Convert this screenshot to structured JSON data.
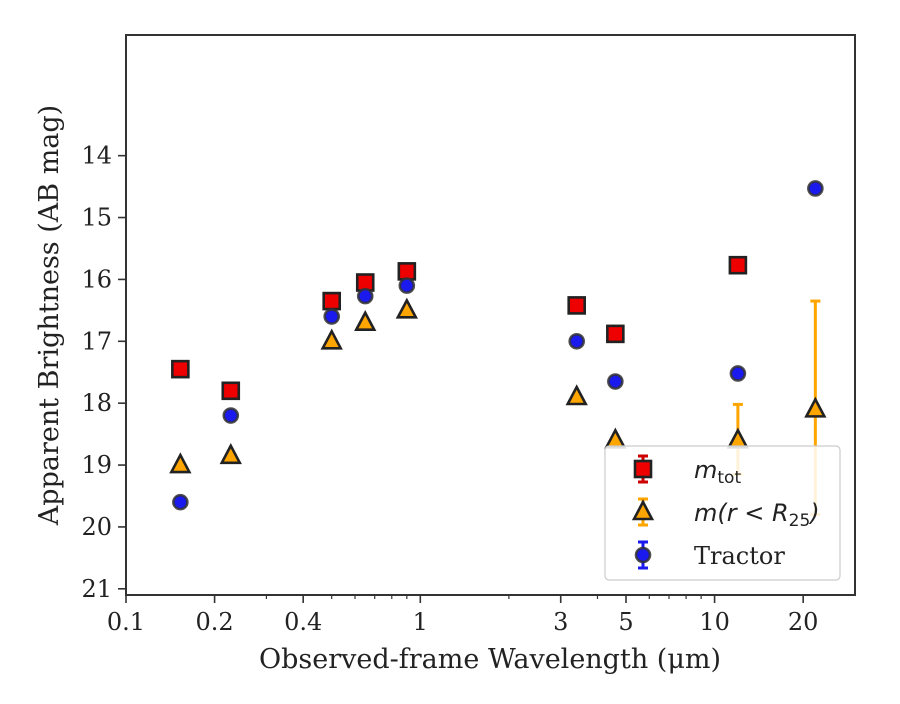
{
  "chart_data": {
    "type": "scatter",
    "xlabel": "Observed-frame Wavelength (μm)",
    "ylabel": "Apparent Brightness (AB mag)",
    "xscale": "log",
    "yaxis_inverted": true,
    "xlim": [
      0.1,
      30
    ],
    "ylim": [
      21.1,
      12.05
    ],
    "xticks": [
      0.1,
      0.2,
      0.4,
      1,
      3,
      5,
      10,
      20
    ],
    "xtick_labels": [
      "0.1",
      "0.2",
      "0.4",
      "1",
      "3",
      "5",
      "10",
      "20"
    ],
    "yticks": [
      14,
      15,
      16,
      17,
      18,
      19,
      20,
      21
    ],
    "ytick_labels": [
      "14",
      "15",
      "16",
      "17",
      "18",
      "19",
      "20",
      "21"
    ],
    "grid": false,
    "legend_position": "lower-right",
    "series": [
      {
        "name": "m_tot",
        "legend_label": "m",
        "legend_sub": "tot",
        "marker": "square",
        "color": "#ee0000",
        "edge": "#222222",
        "errcolor": "#cc0000",
        "points": [
          {
            "x": 0.153,
            "y": 17.45
          },
          {
            "x": 0.227,
            "y": 17.8
          },
          {
            "x": 0.5,
            "y": 16.35
          },
          {
            "x": 0.65,
            "y": 16.05
          },
          {
            "x": 0.9,
            "y": 15.87
          },
          {
            "x": 3.4,
            "y": 16.42
          },
          {
            "x": 4.6,
            "y": 16.88
          },
          {
            "x": 12.0,
            "y": 15.77
          }
        ]
      },
      {
        "name": "m(r < R25)",
        "legend_label": "m(r < R",
        "legend_sub": "25",
        "legend_tail": ")",
        "marker": "triangle",
        "color": "#ffa500",
        "edge": "#222222",
        "errcolor": "#ffa500",
        "points": [
          {
            "x": 0.153,
            "y": 19.0
          },
          {
            "x": 0.227,
            "y": 18.85
          },
          {
            "x": 0.5,
            "y": 17.0
          },
          {
            "x": 0.65,
            "y": 16.7
          },
          {
            "x": 0.9,
            "y": 16.5
          },
          {
            "x": 3.4,
            "y": 17.9
          },
          {
            "x": 4.6,
            "y": 18.6
          },
          {
            "x": 12.0,
            "y": 18.6,
            "err_low": 18.02,
            "err_high": 19.15
          },
          {
            "x": 22.0,
            "y": 18.1,
            "err_low": 16.35,
            "err_high": 19.8
          }
        ]
      },
      {
        "name": "Tractor",
        "legend_label": "Tractor",
        "marker": "circle",
        "color": "#1a1aee",
        "edge": "#333333",
        "errcolor": "#1a1aee",
        "points": [
          {
            "x": 0.153,
            "y": 19.6
          },
          {
            "x": 0.227,
            "y": 18.2
          },
          {
            "x": 0.5,
            "y": 16.6
          },
          {
            "x": 0.65,
            "y": 16.27
          },
          {
            "x": 0.9,
            "y": 16.1
          },
          {
            "x": 3.4,
            "y": 17.0
          },
          {
            "x": 4.6,
            "y": 17.65
          },
          {
            "x": 12.0,
            "y": 17.52
          },
          {
            "x": 22.0,
            "y": 14.53
          }
        ]
      }
    ]
  }
}
